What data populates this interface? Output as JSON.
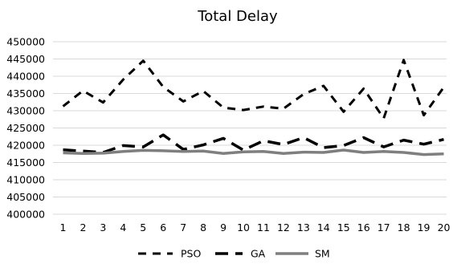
{
  "chart_data": {
    "type": "line",
    "title": "Total Delay",
    "xlabel": "",
    "ylabel": "",
    "categories": [
      "1",
      "2",
      "3",
      "4",
      "5",
      "6",
      "7",
      "8",
      "9",
      "10",
      "11",
      "12",
      "13",
      "14",
      "15",
      "16",
      "17",
      "18",
      "19",
      "20"
    ],
    "ylim": [
      400000,
      450000
    ],
    "yticks": [
      400000,
      405000,
      410000,
      415000,
      420000,
      425000,
      430000,
      435000,
      440000,
      445000,
      450000
    ],
    "ytick_labels": [
      "400000",
      "405000",
      "410000",
      "415000",
      "420000",
      "425000",
      "430000",
      "435000",
      "440000",
      "445000",
      "450000"
    ],
    "grid": true,
    "legend_position": "bottom",
    "series": [
      {
        "name": "PSO",
        "color": "#000000",
        "style": "dashed",
        "values": [
          431300,
          435800,
          432400,
          439000,
          444500,
          436900,
          432700,
          435700,
          430900,
          430200,
          431200,
          430600,
          434800,
          437200,
          429700,
          436400,
          427800,
          444700,
          428700,
          436800
        ]
      },
      {
        "name": "GA",
        "color": "#000000",
        "style": "long-dash",
        "values": [
          418700,
          418300,
          417900,
          419900,
          419500,
          423000,
          418800,
          420100,
          422000,
          418600,
          421300,
          420200,
          422200,
          419300,
          419900,
          422200,
          419500,
          421500,
          420300,
          421700
        ]
      },
      {
        "name": "SM",
        "color": "#7f7f7f",
        "style": "solid",
        "values": [
          417800,
          417600,
          417700,
          418200,
          418500,
          418400,
          418200,
          418300,
          417600,
          418100,
          418200,
          417600,
          418000,
          417900,
          418600,
          417900,
          418200,
          417900,
          417300,
          417500
        ]
      }
    ]
  }
}
